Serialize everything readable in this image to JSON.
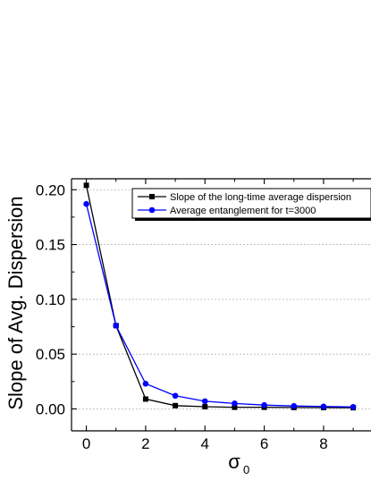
{
  "chart_data": {
    "type": "line",
    "title": "",
    "xlabel": "σ",
    "xlabel_subscript": "0",
    "ylabel": "Slope of Avg. Dispersion",
    "xlim": [
      -0.5,
      9.6
    ],
    "ylim": [
      -0.02,
      0.21
    ],
    "xticks": [
      0,
      2,
      4,
      6,
      8
    ],
    "xtick_labels": [
      "0",
      "2",
      "4",
      "6",
      "8"
    ],
    "yticks": [
      0.0,
      0.05,
      0.1,
      0.15,
      0.2
    ],
    "ytick_labels": [
      "0.00",
      "0.05",
      "0.10",
      "0.15",
      "0.20"
    ],
    "grid": true,
    "legend_position": "top-right",
    "series": [
      {
        "name": "Slope of the long-time average dispersion",
        "color": "#000000",
        "marker": "square",
        "x": [
          0,
          1,
          2,
          3,
          4,
          5,
          6,
          7,
          8,
          9
        ],
        "values": [
          0.204,
          0.076,
          0.009,
          0.003,
          0.002,
          0.0015,
          0.0015,
          0.0013,
          0.0012,
          0.0011
        ]
      },
      {
        "name": "Average entanglement for t=3000",
        "color": "#0000ff",
        "marker": "circle",
        "x": [
          0,
          1,
          2,
          3,
          4,
          5,
          6,
          7,
          8,
          9
        ],
        "values": [
          0.187,
          0.076,
          0.023,
          0.012,
          0.007,
          0.005,
          0.0035,
          0.0027,
          0.0022,
          0.0018
        ]
      }
    ]
  }
}
